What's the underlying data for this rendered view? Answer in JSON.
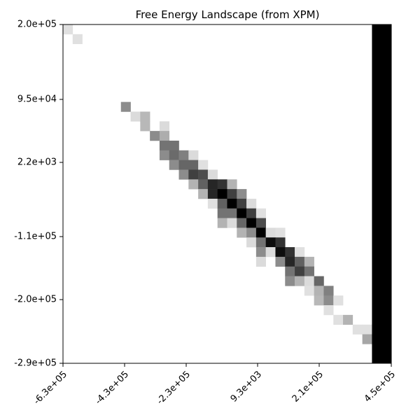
{
  "chart_data": {
    "type": "heatmap",
    "title": "Free Energy Landscape (from XPM)",
    "xlabel": "",
    "ylabel": "",
    "colormap": "grayscale",
    "colors": {
      "frame": "#000000",
      "background": "#ffffff"
    },
    "x_ticks": [
      "-6.3e+05",
      "-4.3e+05",
      "-2.3e+05",
      "9.3e+03",
      "2.1e+05",
      "4.5e+05"
    ],
    "y_ticks": [
      "2.0e+05",
      "9.5e+04",
      "2.2e+03",
      "-1.1e+05",
      "-2.0e+05",
      "-2.9e+05"
    ],
    "grid_cols": 34,
    "grid_rows": 35,
    "cells": [
      [
        0,
        0,
        0.12
      ],
      [
        1,
        1,
        0.12
      ],
      [
        6,
        8,
        0.45
      ],
      [
        7,
        9,
        0.14
      ],
      [
        8,
        9,
        0.28
      ],
      [
        8,
        10,
        0.28
      ],
      [
        10,
        10,
        0.14
      ],
      [
        9,
        11,
        0.45
      ],
      [
        10,
        11,
        0.32
      ],
      [
        10,
        12,
        0.55
      ],
      [
        11,
        12,
        0.55
      ],
      [
        10,
        13,
        0.45
      ],
      [
        11,
        13,
        0.58
      ],
      [
        12,
        13,
        0.5
      ],
      [
        13,
        13,
        0.14
      ],
      [
        11,
        14,
        0.45
      ],
      [
        12,
        14,
        0.6
      ],
      [
        13,
        14,
        0.6
      ],
      [
        14,
        14,
        0.12
      ],
      [
        12,
        15,
        0.45
      ],
      [
        13,
        15,
        0.75
      ],
      [
        14,
        15,
        0.7
      ],
      [
        15,
        15,
        0.14
      ],
      [
        13,
        16,
        0.3
      ],
      [
        14,
        16,
        0.62
      ],
      [
        15,
        16,
        0.85
      ],
      [
        16,
        16,
        0.8
      ],
      [
        17,
        16,
        0.3
      ],
      [
        14,
        17,
        0.3
      ],
      [
        15,
        17,
        0.85
      ],
      [
        16,
        17,
        1.0
      ],
      [
        17,
        17,
        0.75
      ],
      [
        18,
        17,
        0.45
      ],
      [
        15,
        18,
        0.12
      ],
      [
        16,
        18,
        0.62
      ],
      [
        17,
        18,
        1.0
      ],
      [
        18,
        18,
        0.75
      ],
      [
        19,
        18,
        0.14
      ],
      [
        16,
        19,
        0.55
      ],
      [
        17,
        19,
        0.55
      ],
      [
        18,
        19,
        1.0
      ],
      [
        19,
        19,
        0.75
      ],
      [
        20,
        19,
        0.12
      ],
      [
        16,
        20,
        0.3
      ],
      [
        17,
        20,
        0.14
      ],
      [
        18,
        20,
        0.6
      ],
      [
        19,
        20,
        1.0
      ],
      [
        20,
        20,
        0.7
      ],
      [
        18,
        21,
        0.3
      ],
      [
        19,
        21,
        0.45
      ],
      [
        20,
        21,
        1.0
      ],
      [
        21,
        21,
        0.14
      ],
      [
        22,
        21,
        0.12
      ],
      [
        19,
        22,
        0.14
      ],
      [
        20,
        22,
        0.55
      ],
      [
        21,
        22,
        0.95
      ],
      [
        22,
        22,
        0.8
      ],
      [
        20,
        23,
        0.45
      ],
      [
        21,
        23,
        0.14
      ],
      [
        22,
        23,
        0.95
      ],
      [
        23,
        23,
        0.8
      ],
      [
        24,
        23,
        0.12
      ],
      [
        20,
        24,
        0.14
      ],
      [
        22,
        24,
        0.45
      ],
      [
        23,
        24,
        0.85
      ],
      [
        24,
        24,
        0.62
      ],
      [
        25,
        24,
        0.3
      ],
      [
        23,
        25,
        0.55
      ],
      [
        24,
        25,
        0.75
      ],
      [
        25,
        25,
        0.55
      ],
      [
        23,
        26,
        0.45
      ],
      [
        24,
        26,
        0.3
      ],
      [
        25,
        26,
        0.14
      ],
      [
        26,
        26,
        0.6
      ],
      [
        25,
        27,
        0.12
      ],
      [
        26,
        27,
        0.3
      ],
      [
        27,
        27,
        0.5
      ],
      [
        26,
        28,
        0.28
      ],
      [
        27,
        28,
        0.45
      ],
      [
        28,
        28,
        0.12
      ],
      [
        27,
        29,
        0.12
      ],
      [
        28,
        30,
        0.12
      ],
      [
        29,
        30,
        0.3
      ],
      [
        30,
        31,
        0.12
      ],
      [
        31,
        31,
        0.12
      ],
      [
        31,
        32,
        0.35
      ]
    ],
    "bands": [
      {
        "from_col": 32,
        "to_col": 33,
        "intensity": 1.0
      }
    ]
  }
}
